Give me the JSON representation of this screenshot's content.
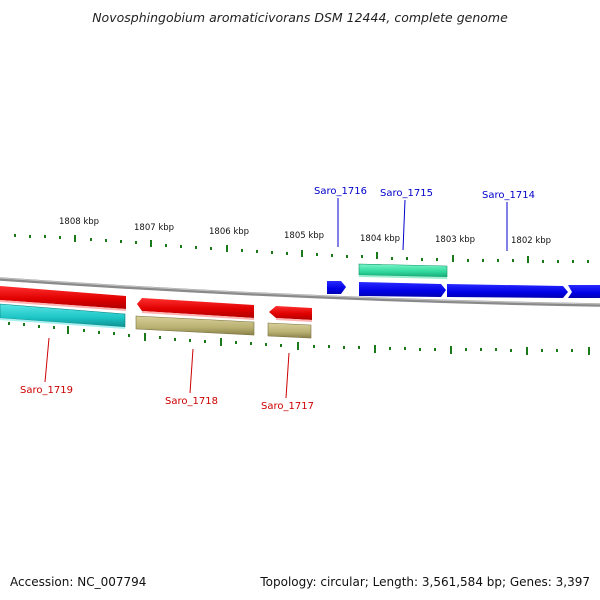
{
  "title": "Novosphingobium aromaticivorans DSM 12444, complete genome",
  "footer": {
    "accession": "Accession: NC_007794",
    "topology": "Topology: circular; Length: 3,561,584 bp; Genes: 3,397"
  },
  "kbp_labels": [
    "1808 kbp",
    "1807 kbp",
    "1806 kbp",
    "1805 kbp",
    "1804 kbp",
    "1803 kbp",
    "1802 kbp"
  ],
  "genes": [
    {
      "name": "Saro_1719",
      "strand": "reverse",
      "color": "#cc0000"
    },
    {
      "name": "Saro_1718",
      "strand": "reverse",
      "color": "#cc0000"
    },
    {
      "name": "Saro_1717",
      "strand": "reverse",
      "color": "#cc0000"
    },
    {
      "name": "Saro_1716",
      "strand": "forward",
      "color": "#0000cc"
    },
    {
      "name": "Saro_1715",
      "strand": "forward",
      "color": "#0000cc"
    },
    {
      "name": "Saro_1714",
      "strand": "forward",
      "color": "#0000cc"
    }
  ],
  "colors": {
    "forward_cds": "#0000ee",
    "reverse_cds": "#ee0000",
    "rna_forward": "#33e0a0",
    "rna_reverse_cyan": "#22c8c8",
    "rna_reverse_olive": "#b8b070",
    "backbone": "#888888",
    "ticks": "#1a7a1a"
  }
}
